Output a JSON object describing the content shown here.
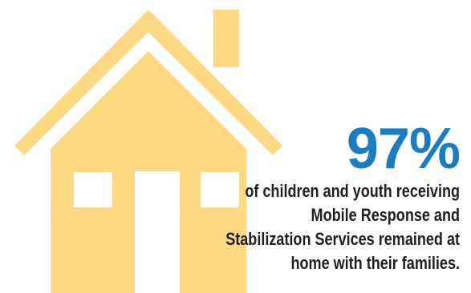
{
  "stat": {
    "value": "97%",
    "caption_lines": [
      "of children and youth receiving",
      "Mobile Response and",
      "Stabilization Services remained at",
      "home with their families."
    ]
  },
  "colors": {
    "accent": "#1a7cc1",
    "house": "#fdd983",
    "text": "#1f1f1f",
    "background": "#ffffff"
  },
  "icon": "house-icon"
}
